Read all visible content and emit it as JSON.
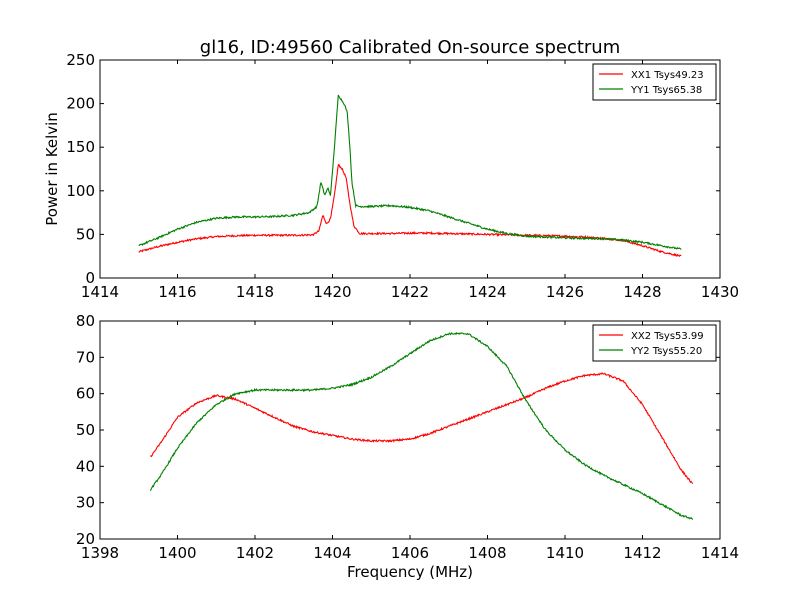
{
  "figure": {
    "title": "gl16, ID:49560 Calibrated On-source spectrum",
    "ylabel_top": "Power in Kelvin",
    "xlabel_bottom": "Frequency (MHz)"
  },
  "chart_data": [
    {
      "type": "line",
      "title": "gl16, ID:49560 Calibrated On-source spectrum",
      "xlabel": "",
      "ylabel": "Power in Kelvin",
      "xlim": [
        1414,
        1430
      ],
      "ylim": [
        0,
        250
      ],
      "xticks": [
        "1414",
        "1416",
        "1418",
        "1420",
        "1422",
        "1424",
        "1426",
        "1428",
        "1430"
      ],
      "yticks": [
        "0",
        "50",
        "100",
        "150",
        "200",
        "250"
      ],
      "grid": false,
      "legend_position": "top-right",
      "series": [
        {
          "name": "XX1 Tsys49.23",
          "color": "#ff0000",
          "x": [
            1415.0,
            1415.5,
            1416.0,
            1416.5,
            1417.0,
            1417.5,
            1418.0,
            1418.5,
            1419.0,
            1419.5,
            1419.65,
            1419.75,
            1419.85,
            1419.95,
            1420.05,
            1420.15,
            1420.25,
            1420.35,
            1420.45,
            1420.55,
            1420.7,
            1421.0,
            1421.5,
            1422.0,
            1422.5,
            1423.0,
            1423.5,
            1424.0,
            1424.5,
            1425.0,
            1425.5,
            1426.0,
            1426.5,
            1427.0,
            1427.5,
            1428.0,
            1428.5,
            1429.0
          ],
          "y": [
            30,
            36,
            41,
            45,
            47.5,
            48.5,
            49,
            49,
            49,
            49.5,
            54,
            72,
            62,
            68,
            95,
            130,
            125,
            115,
            85,
            60,
            51,
            51,
            51,
            51.5,
            51.5,
            51,
            50.5,
            50,
            49.5,
            49,
            48.5,
            48,
            47,
            45.5,
            43,
            37,
            30,
            25
          ]
        },
        {
          "name": "YY1 Tsys65.38",
          "color": "#008000",
          "x": [
            1415.0,
            1415.5,
            1416.0,
            1416.5,
            1417.0,
            1417.5,
            1418.0,
            1418.5,
            1419.0,
            1419.4,
            1419.6,
            1419.7,
            1419.8,
            1419.88,
            1419.95,
            1420.05,
            1420.15,
            1420.22,
            1420.3,
            1420.38,
            1420.45,
            1420.5,
            1420.6,
            1420.7,
            1421.0,
            1421.5,
            1422.0,
            1422.5,
            1423.0,
            1423.5,
            1424.0,
            1424.5,
            1425.0,
            1425.5,
            1426.0,
            1426.5,
            1427.0,
            1427.5,
            1428.0,
            1428.5,
            1429.0
          ],
          "y": [
            37,
            46,
            56,
            64,
            68.5,
            70,
            70,
            70.5,
            72,
            75,
            82,
            110,
            95,
            103,
            95,
            150,
            210,
            205,
            200,
            190,
            150,
            110,
            83,
            82,
            82,
            83,
            81,
            77,
            70,
            63,
            56,
            51,
            48,
            47,
            46,
            45.5,
            45,
            43.5,
            41,
            37,
            33
          ]
        }
      ]
    },
    {
      "type": "line",
      "title": "",
      "xlabel": "Frequency (MHz)",
      "ylabel": "",
      "xlim": [
        1398,
        1414
      ],
      "ylim": [
        20,
        80
      ],
      "xticks": [
        "1398",
        "1400",
        "1402",
        "1404",
        "1406",
        "1408",
        "1410",
        "1412",
        "1414"
      ],
      "yticks": [
        "20",
        "30",
        "40",
        "50",
        "60",
        "70",
        "80"
      ],
      "grid": false,
      "legend_position": "top-right",
      "series": [
        {
          "name": "XX2 Tsys53.99",
          "color": "#ff0000",
          "x": [
            1399.3,
            1399.6,
            1400.0,
            1400.5,
            1401.0,
            1401.5,
            1402.0,
            1402.5,
            1403.0,
            1403.5,
            1404.0,
            1404.5,
            1405.0,
            1405.5,
            1406.0,
            1406.5,
            1407.0,
            1407.5,
            1408.0,
            1408.5,
            1409.0,
            1409.5,
            1410.0,
            1410.5,
            1411.0,
            1411.5,
            1412.0,
            1412.5,
            1413.0,
            1413.3
          ],
          "y": [
            42.5,
            47,
            53.5,
            57.5,
            59.5,
            58.5,
            56,
            53.5,
            51,
            49.5,
            48.5,
            47.5,
            47,
            47,
            47.5,
            49,
            51,
            53,
            55,
            57,
            59,
            61.5,
            63.5,
            65,
            65.5,
            63.5,
            57,
            48,
            39,
            35
          ]
        },
        {
          "name": "YY2 Tsys55.20",
          "color": "#008000",
          "x": [
            1399.3,
            1399.6,
            1400.0,
            1400.5,
            1401.0,
            1401.5,
            1402.0,
            1402.5,
            1403.0,
            1403.5,
            1404.0,
            1404.5,
            1405.0,
            1405.5,
            1406.0,
            1406.5,
            1407.0,
            1407.5,
            1408.0,
            1408.5,
            1409.0,
            1409.5,
            1410.0,
            1410.5,
            1411.0,
            1411.5,
            1412.0,
            1412.5,
            1413.0,
            1413.3
          ],
          "y": [
            33.5,
            38,
            45,
            52,
            57,
            60,
            61,
            61,
            61,
            61,
            61.5,
            62.5,
            64.5,
            67.5,
            71,
            74.5,
            76.5,
            76.5,
            73,
            67.5,
            58,
            50,
            44.5,
            40.5,
            37.5,
            35,
            32.5,
            29.5,
            26.5,
            25.5
          ]
        }
      ]
    }
  ]
}
